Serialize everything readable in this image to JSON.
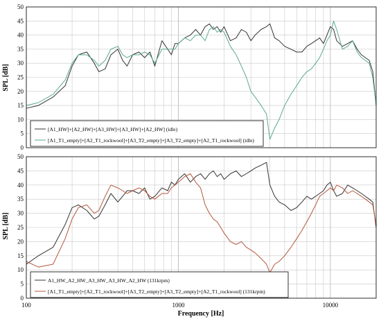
{
  "chart_data": [
    {
      "type": "line",
      "xscale": "log",
      "xlim": [
        100,
        20000
      ],
      "ylim": [
        0,
        50
      ],
      "yticks": [
        0,
        5,
        10,
        15,
        20,
        25,
        30,
        35,
        40,
        45,
        50
      ],
      "ylabel": "SPL [dB]",
      "xlabel": "",
      "grid": true,
      "legend": "bottom-left",
      "series": [
        {
          "name": "[A1_HW]+[A2_HW]+[A3_HW]+[A3_HW]+[A2_HW] (idle)",
          "color": "#333333",
          "x": [
            100,
            120,
            150,
            180,
            200,
            220,
            250,
            280,
            300,
            330,
            360,
            400,
            430,
            460,
            500,
            550,
            600,
            650,
            700,
            780,
            850,
            900,
            950,
            1000,
            1100,
            1200,
            1300,
            1400,
            1500,
            1600,
            1700,
            1800,
            1900,
            2000,
            2200,
            2400,
            2600,
            2800,
            3000,
            3200,
            3500,
            3800,
            4000,
            4300,
            4600,
            5000,
            5500,
            6000,
            6500,
            7000,
            7500,
            8000,
            8500,
            9000,
            9500,
            10000,
            10500,
            11000,
            12000,
            13000,
            14000,
            15000,
            16000,
            17000,
            18000,
            19000,
            20000
          ],
          "y": [
            14,
            15,
            18,
            22,
            29,
            33,
            34,
            30,
            27,
            28,
            33,
            35,
            31,
            29,
            33,
            34,
            32,
            34,
            29,
            38,
            35,
            33,
            37,
            37,
            39,
            40,
            42,
            40,
            43,
            44,
            42,
            43,
            41,
            43,
            38,
            39,
            42,
            41,
            38,
            40,
            42,
            43,
            44,
            39,
            38,
            36,
            35,
            34,
            34,
            36,
            37,
            38,
            39,
            37,
            40,
            43,
            42,
            38,
            36,
            37,
            38,
            35,
            33,
            32,
            31,
            27,
            15
          ]
        },
        {
          "name": "[A1_T1_empty]+[A2_T1_rockwool]+[A3_T2_empty]+[A3_T2_empty]+[A2_T1_rockwool] (idle)",
          "color": "#5aa890",
          "x": [
            100,
            120,
            150,
            180,
            200,
            220,
            250,
            280,
            300,
            330,
            360,
            400,
            430,
            460,
            500,
            550,
            600,
            650,
            700,
            780,
            850,
            900,
            950,
            1000,
            1100,
            1200,
            1300,
            1400,
            1500,
            1600,
            1700,
            1800,
            1900,
            2000,
            2200,
            2400,
            2600,
            2800,
            3000,
            3200,
            3500,
            3800,
            4000,
            4300,
            4600,
            5000,
            5500,
            6000,
            6500,
            7000,
            7500,
            8000,
            8500,
            9000,
            9500,
            10000,
            10500,
            11000,
            12000,
            13000,
            14000,
            15000,
            16000,
            17000,
            18000,
            19000,
            20000
          ],
          "y": [
            15,
            16,
            19,
            24,
            30,
            33,
            33,
            31,
            29,
            31,
            35,
            36,
            33,
            32,
            33,
            33,
            34,
            33,
            30,
            35,
            35,
            35,
            35,
            37,
            39,
            38,
            40,
            40,
            38,
            42,
            43,
            41,
            42,
            41,
            36,
            33,
            29,
            25,
            20,
            18,
            15,
            12,
            3,
            7,
            10,
            15,
            19,
            22,
            25,
            27,
            28,
            30,
            32,
            35,
            38,
            40,
            45,
            42,
            35,
            36,
            38,
            34,
            32,
            31,
            30,
            25,
            15
          ]
        }
      ]
    },
    {
      "type": "line",
      "xscale": "log",
      "xlim": [
        100,
        20000
      ],
      "ylim": [
        0,
        50
      ],
      "yticks": [
        0,
        5,
        10,
        15,
        20,
        25,
        30,
        35,
        40,
        45,
        50
      ],
      "xticks": [
        100,
        1000,
        10000
      ],
      "ylabel": "SPL [dB]",
      "xlabel": "Frequency [Hz]",
      "grid": true,
      "legend": "bottom-left",
      "series": [
        {
          "name": "A1_HW_A2_HW_A3_HW_A3_HW_A2_HW (131krpm)",
          "color": "#333333",
          "x": [
            100,
            120,
            150,
            180,
            200,
            220,
            250,
            280,
            300,
            330,
            360,
            400,
            430,
            460,
            500,
            550,
            600,
            650,
            700,
            780,
            850,
            900,
            950,
            1000,
            1100,
            1200,
            1300,
            1400,
            1500,
            1600,
            1700,
            1800,
            1900,
            2000,
            2200,
            2400,
            2600,
            2800,
            3000,
            3200,
            3500,
            3800,
            4000,
            4300,
            4600,
            5000,
            5500,
            6000,
            6500,
            7000,
            7500,
            8000,
            8500,
            9000,
            9500,
            10000,
            10500,
            11000,
            12000,
            13000,
            14000,
            15000,
            16000,
            17000,
            18000,
            19000,
            20000
          ],
          "y": [
            12,
            15,
            18,
            26,
            32,
            33,
            31,
            28,
            29,
            33,
            37,
            34,
            36,
            38,
            38,
            37,
            39,
            35,
            36,
            39,
            38,
            41,
            40,
            42,
            44,
            41,
            43,
            44,
            42,
            44,
            45,
            43,
            44,
            42,
            44,
            45,
            43,
            44,
            45,
            46,
            47,
            48,
            40,
            36,
            34,
            33,
            31,
            32,
            34,
            36,
            35,
            36,
            37,
            38,
            40,
            41,
            38,
            36,
            37,
            40,
            39,
            38,
            37,
            36,
            35,
            34,
            25
          ]
        },
        {
          "name": "[A1_T1_empty]+[A2_T1_rockwool]+[A3_T2_empty]+[A3_T2_empty]+[A2_T1_rockwool] (131krpm)",
          "color": "#b5563b",
          "x": [
            100,
            120,
            150,
            180,
            200,
            220,
            250,
            280,
            300,
            330,
            360,
            400,
            430,
            460,
            500,
            550,
            600,
            650,
            700,
            780,
            850,
            900,
            950,
            1000,
            1100,
            1200,
            1300,
            1400,
            1500,
            1600,
            1700,
            1800,
            1900,
            2000,
            2200,
            2400,
            2600,
            2800,
            3000,
            3200,
            3500,
            3800,
            4000,
            4300,
            4600,
            5000,
            5500,
            6000,
            6500,
            7000,
            7500,
            8000,
            8500,
            9000,
            9500,
            10000,
            10500,
            11000,
            12000,
            13000,
            14000,
            15000,
            16000,
            17000,
            18000,
            19000,
            20000
          ],
          "y": [
            13,
            11,
            12,
            21,
            28,
            32,
            33,
            30,
            31,
            36,
            40,
            39,
            38,
            37,
            38,
            39,
            38,
            36,
            35,
            37,
            37,
            39,
            40,
            41,
            43,
            44,
            41,
            39,
            33,
            30,
            28,
            27,
            25,
            23,
            20,
            19,
            20,
            18,
            17,
            16,
            14,
            12,
            9,
            12,
            13,
            15,
            18,
            21,
            24,
            27,
            30,
            33,
            36,
            37,
            38,
            39,
            38,
            40,
            39,
            37,
            38,
            37,
            36,
            35,
            34,
            33,
            26
          ]
        }
      ]
    }
  ]
}
